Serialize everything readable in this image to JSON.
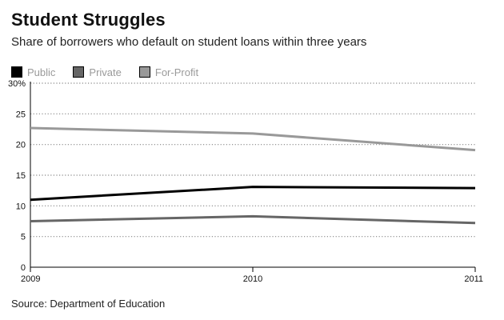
{
  "title": "Student Struggles",
  "subtitle": "Share of borrowers who default on student loans within three years",
  "source": "Source: Department of Education",
  "chart_data": {
    "type": "line",
    "title": "Student Struggles",
    "subtitle": "Share of borrowers who default on student loans within three years",
    "xlabel": "",
    "ylabel": "",
    "x": [
      "2009",
      "2010",
      "2011"
    ],
    "ylim": [
      0,
      30
    ],
    "yticks": [
      "0",
      "5",
      "10",
      "15",
      "20",
      "25",
      "30%"
    ],
    "grid": true,
    "legend_position": "top-left",
    "series": [
      {
        "name": "Public",
        "color": "#000000",
        "values": [
          11.0,
          13.1,
          12.9
        ]
      },
      {
        "name": "Private",
        "color": "#666666",
        "values": [
          7.5,
          8.3,
          7.2
        ]
      },
      {
        "name": "For-Profit",
        "color": "#999999",
        "values": [
          22.7,
          21.8,
          19.1
        ]
      }
    ]
  }
}
